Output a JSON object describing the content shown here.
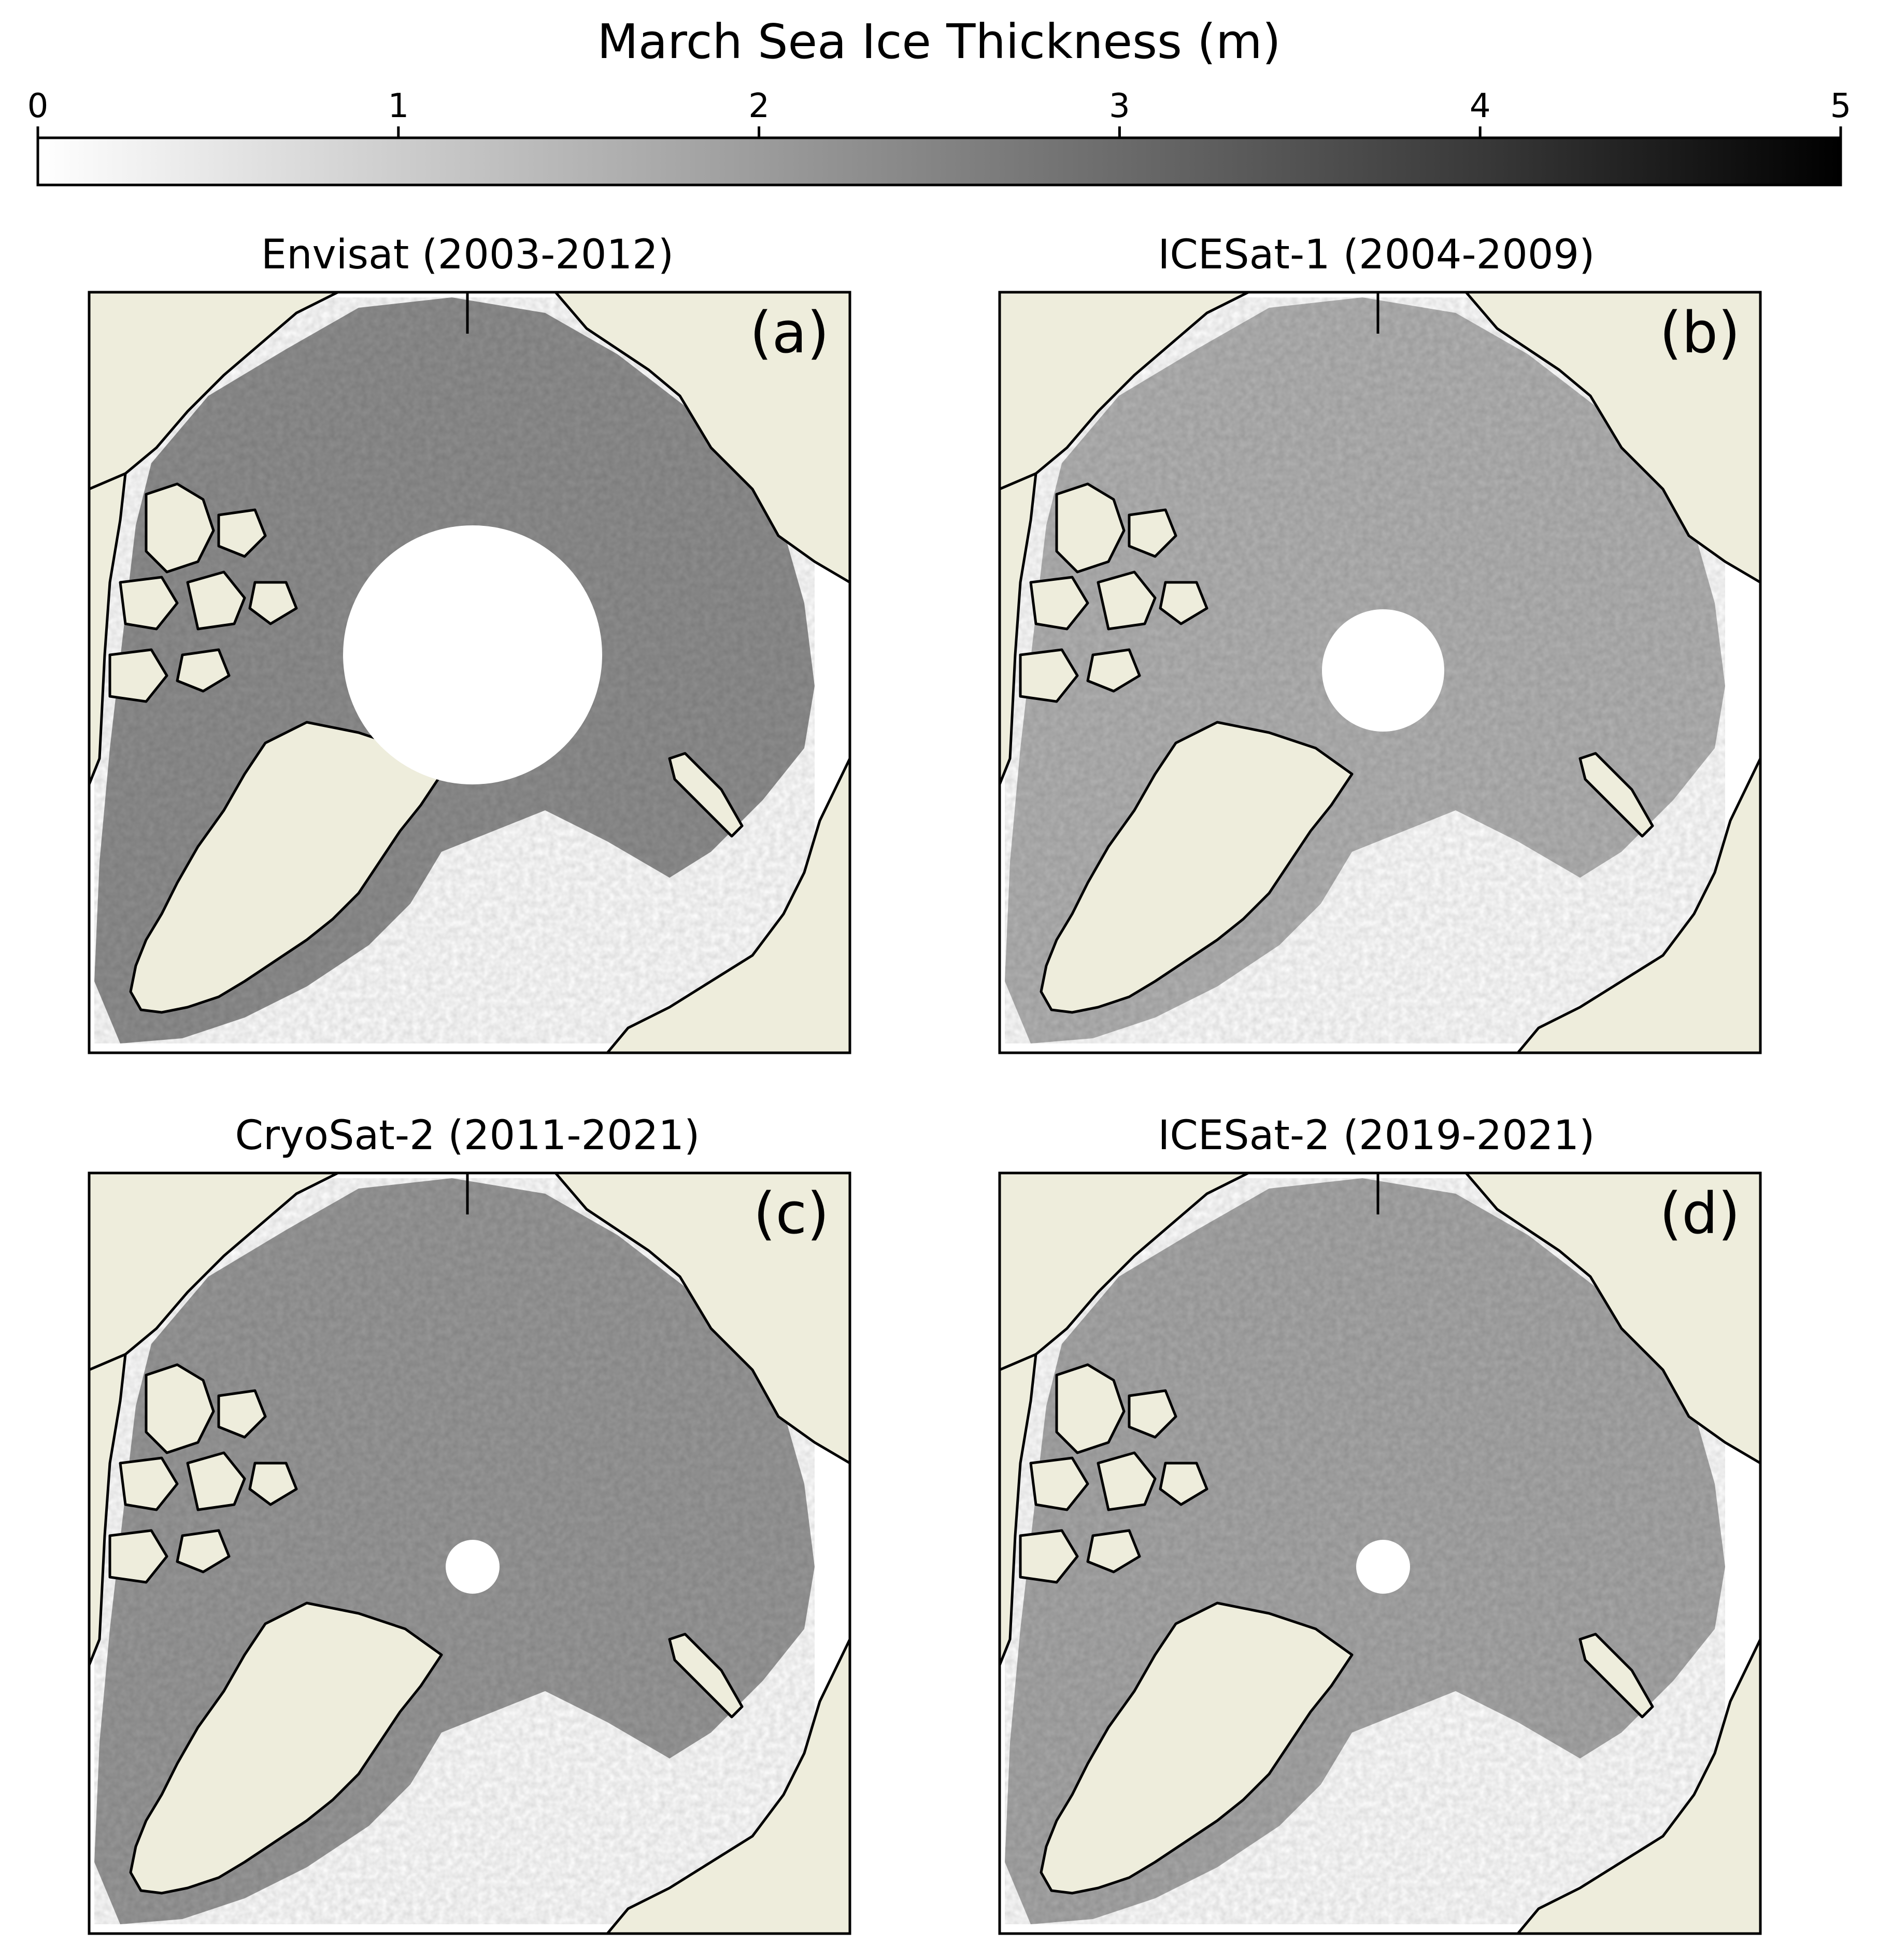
{
  "colorbar": {
    "title": "March Sea Ice Thickness (m)",
    "ticks": [
      "0",
      "1",
      "2",
      "3",
      "4",
      "5"
    ],
    "range": [
      0,
      5
    ],
    "colormap": "white-to-black grayscale",
    "color_low": "#ffffff",
    "color_high": "#000000"
  },
  "colors": {
    "land": "#eeeddc",
    "coastline": "#000000",
    "no_data": "#ffffff"
  },
  "panels": [
    {
      "letter": "(a)",
      "title": "Envisat (2003-2012)",
      "typical_thickness_m": 2.2,
      "pole_hole": "large"
    },
    {
      "letter": "(b)",
      "title": "ICESat-1 (2004-2009)",
      "typical_thickness_m": 1.5,
      "pole_hole": "medium"
    },
    {
      "letter": "(c)",
      "title": "CryoSat-2 (2011-2021)",
      "typical_thickness_m": 2.0,
      "pole_hole": "small"
    },
    {
      "letter": "(d)",
      "title": "ICESat-2 (2019-2021)",
      "typical_thickness_m": 1.7,
      "pole_hole": "small"
    }
  ]
}
